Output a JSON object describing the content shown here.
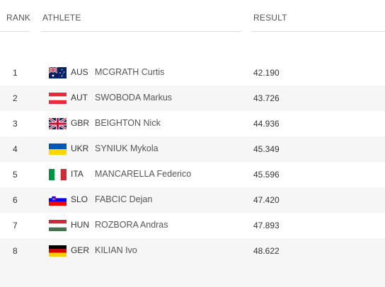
{
  "header": {
    "rank": "RANK",
    "athlete": "ATHLETE",
    "result": "RESULT"
  },
  "rows": [
    {
      "rank": "1",
      "code": "AUS",
      "name": "MCGRATH Curtis",
      "result": "42.190",
      "flag": "australia-flag-icon"
    },
    {
      "rank": "2",
      "code": "AUT",
      "name": "SWOBODA Markus",
      "result": "43.726",
      "flag": "austria-flag-icon"
    },
    {
      "rank": "3",
      "code": "GBR",
      "name": "BEIGHTON Nick",
      "result": "44.936",
      "flag": "great-britain-flag-icon"
    },
    {
      "rank": "4",
      "code": "UKR",
      "name": "SYNIUK Mykola",
      "result": "45.349",
      "flag": "ukraine-flag-icon"
    },
    {
      "rank": "5",
      "code": "ITA",
      "name": "MANCARELLA Federico",
      "result": "45.596",
      "flag": "italy-flag-icon"
    },
    {
      "rank": "6",
      "code": "SLO",
      "name": "FABCIC Dejan",
      "result": "47.420",
      "flag": "slovenia-flag-icon"
    },
    {
      "rank": "7",
      "code": "HUN",
      "name": "ROZBORA Andras",
      "result": "47.893",
      "flag": "hungary-flag-icon"
    },
    {
      "rank": "8",
      "code": "GER",
      "name": "KILIAN Ivo",
      "result": "48.622",
      "flag": "germany-flag-icon"
    }
  ]
}
